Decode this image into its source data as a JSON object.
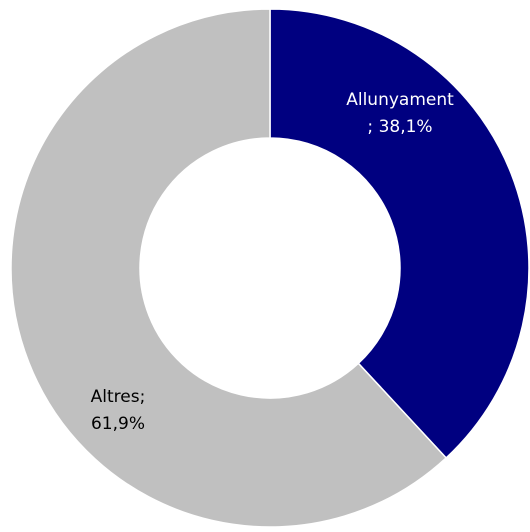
{
  "chart_data": {
    "type": "donut",
    "categories": [
      "Allunyament",
      "Altres"
    ],
    "values": [
      38.1,
      61.9
    ],
    "value_labels": [
      "38,1%",
      "61,9%"
    ],
    "label_separator": ";",
    "colors": [
      "#000080",
      "#c0c0c0"
    ],
    "label_colors": [
      "#ffffff",
      "#000000"
    ]
  }
}
